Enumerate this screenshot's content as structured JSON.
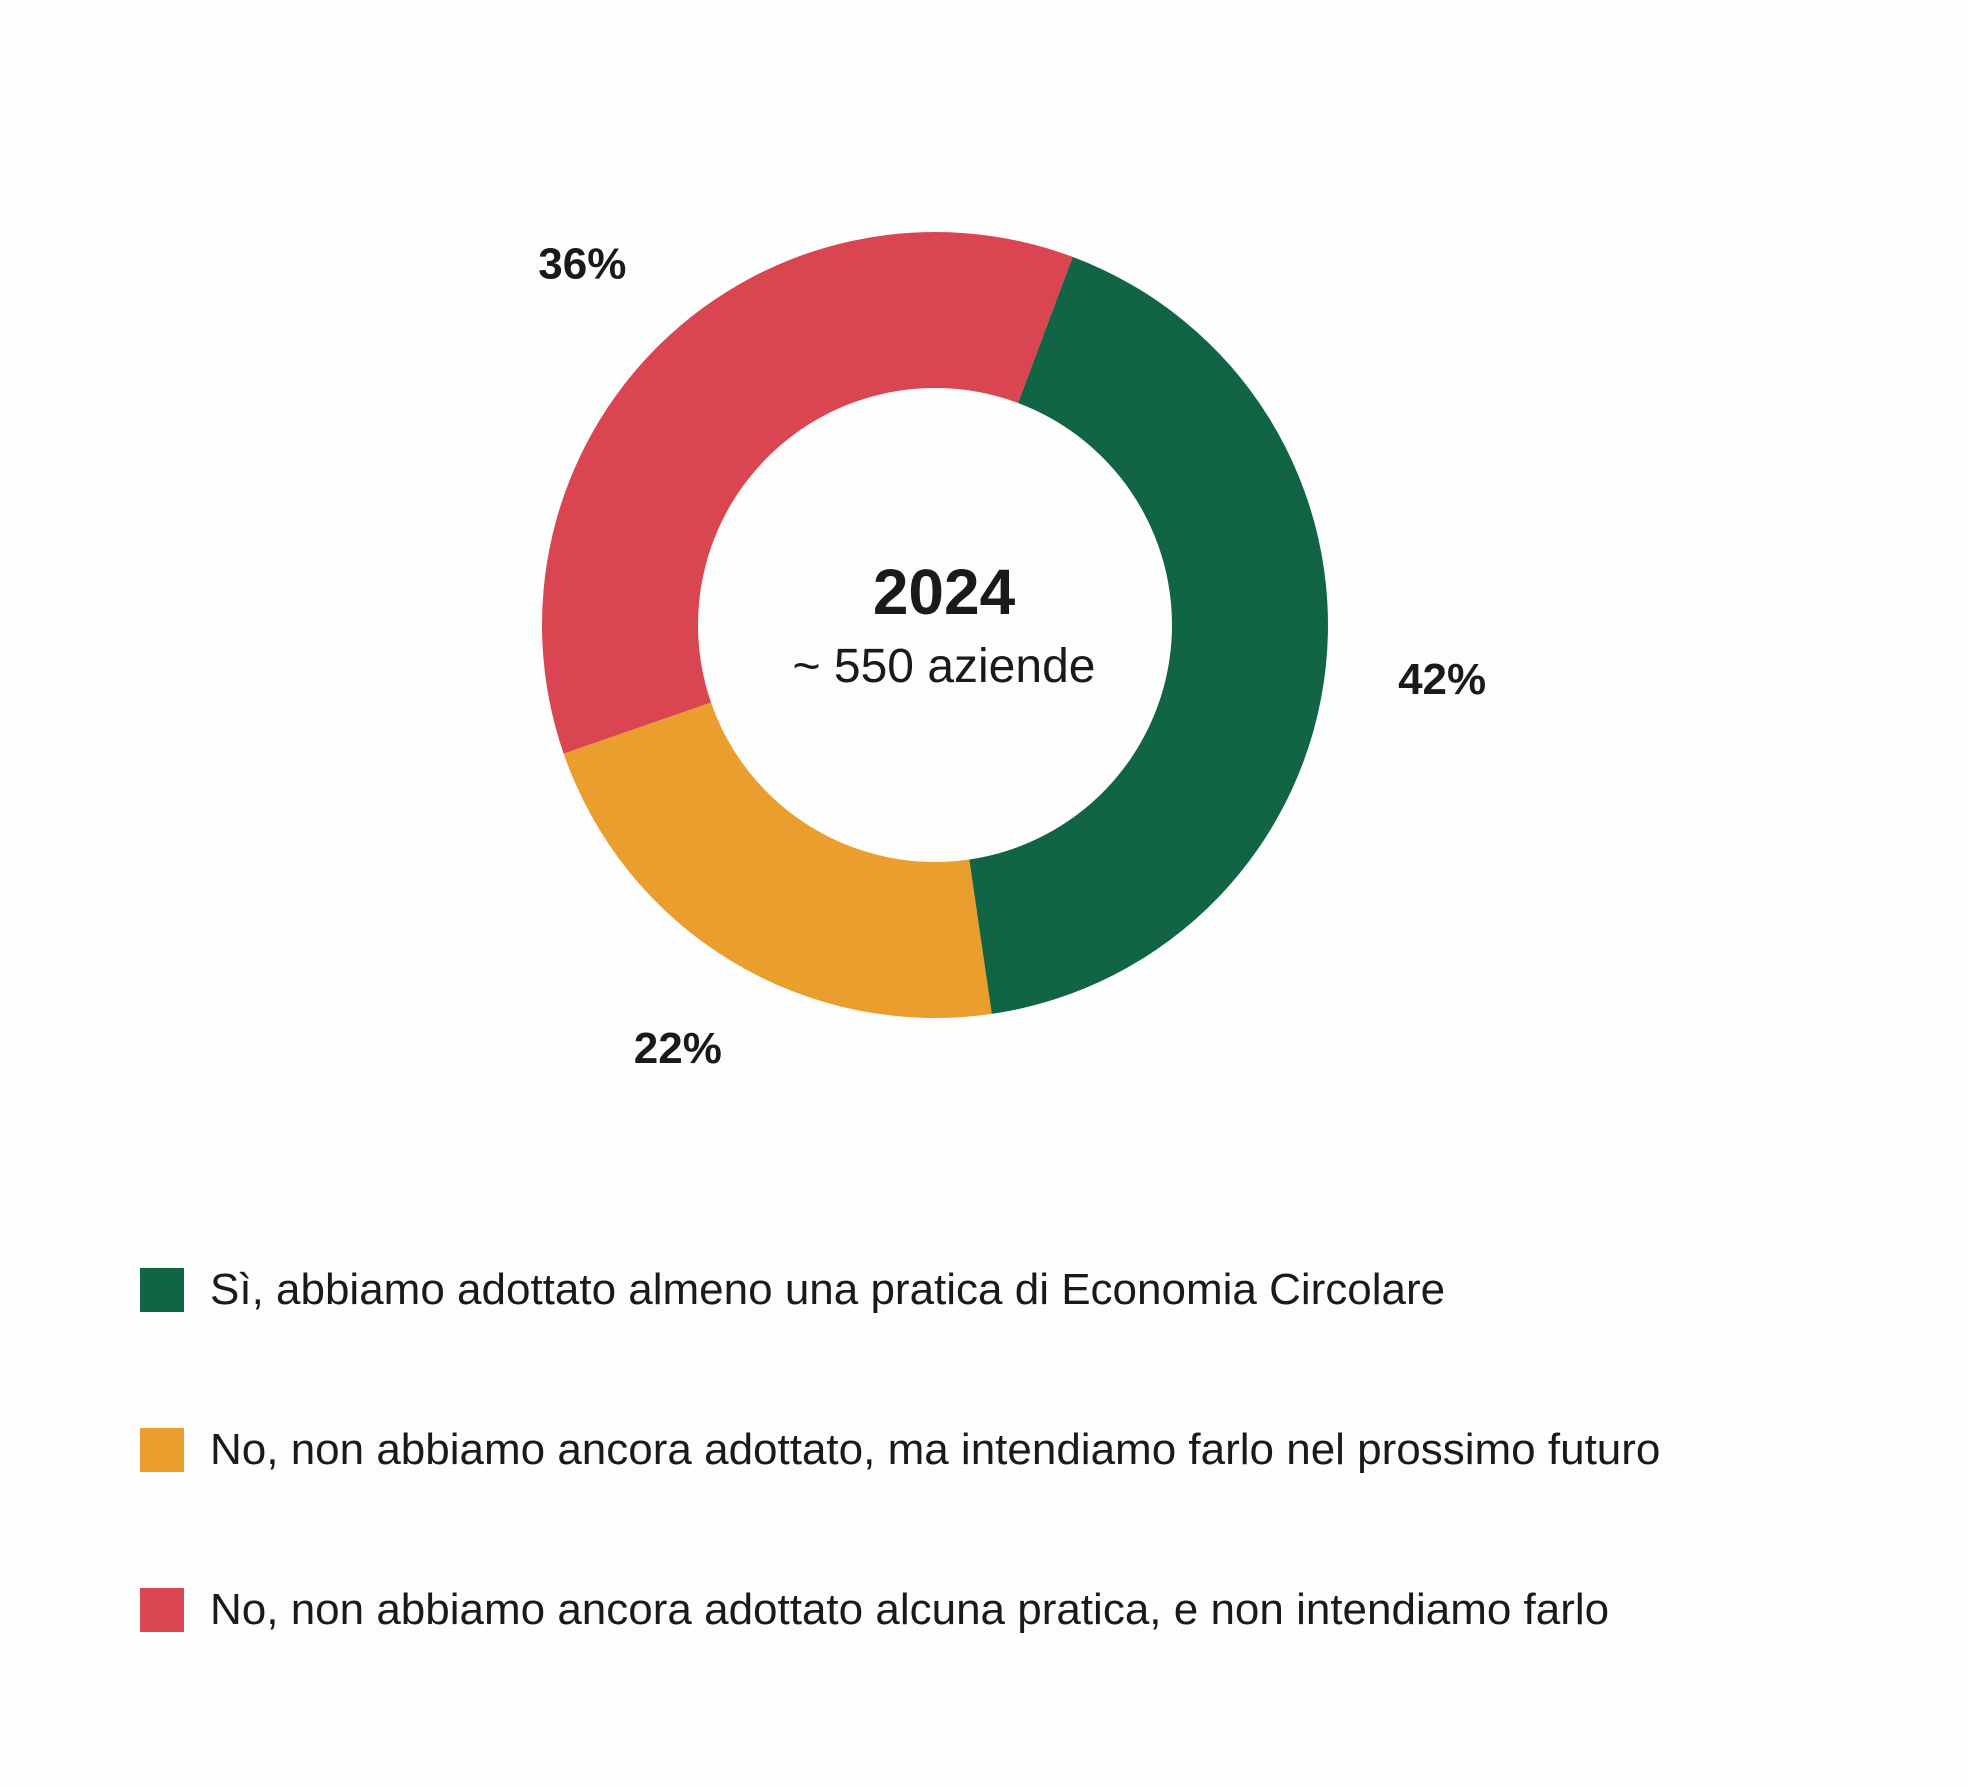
{
  "chart_data": {
    "type": "pie",
    "subtype": "donut",
    "center_title": "2024",
    "center_subtitle": "~ 550 aziende",
    "slices": [
      {
        "label": "Sì, abbiamo adottato almeno una pratica di Economia Circolare",
        "value": 42,
        "display": "42%",
        "color": "#116544"
      },
      {
        "label": "No, non abbiamo ancora adottato, ma intendiamo farlo nel prossimo futuro",
        "value": 22,
        "display": "22%",
        "color": "#e99e2d"
      },
      {
        "label": "No, non abbiamo ancora adottato alcuna pratica, e non intendiamo farlo",
        "value": 36,
        "display": "36%",
        "color": "#d94652"
      }
    ],
    "legend_position": "bottom"
  }
}
